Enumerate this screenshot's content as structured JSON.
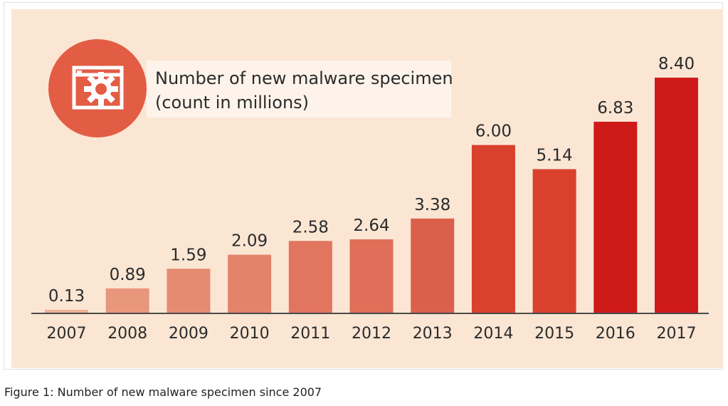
{
  "chart_data": {
    "type": "bar",
    "title": "Number of new malware specimen",
    "subtitle": "(count in millions)",
    "categories": [
      "2007",
      "2008",
      "2009",
      "2010",
      "2011",
      "2012",
      "2013",
      "2014",
      "2015",
      "2016",
      "2017"
    ],
    "values": [
      0.13,
      0.89,
      1.59,
      2.09,
      2.58,
      2.64,
      3.38,
      6.0,
      5.14,
      6.83,
      8.4
    ],
    "value_labels": [
      "0.13",
      "0.89",
      "1.59",
      "2.09",
      "2.58",
      "2.64",
      "3.38",
      "6.00",
      "5.14",
      "6.83",
      "8.40"
    ],
    "bar_colors": [
      "#eeb196",
      "#e8977c",
      "#e58b72",
      "#e3836a",
      "#e17560",
      "#df6f59",
      "#db604b",
      "#d9412c",
      "#d9412c",
      "#cf1a1a",
      "#cf1a1a"
    ],
    "ylim": [
      0,
      8.4
    ],
    "grid": false,
    "legend": "none"
  },
  "icon": {
    "name": "malware-window-gear-icon",
    "color": "#e35c44"
  },
  "colors": {
    "background": "#fbe6d4",
    "title_box": "#fdf3ea",
    "axis": "#4a4a4a"
  },
  "caption": "Figure 1: Number of new malware specimen since 2007"
}
